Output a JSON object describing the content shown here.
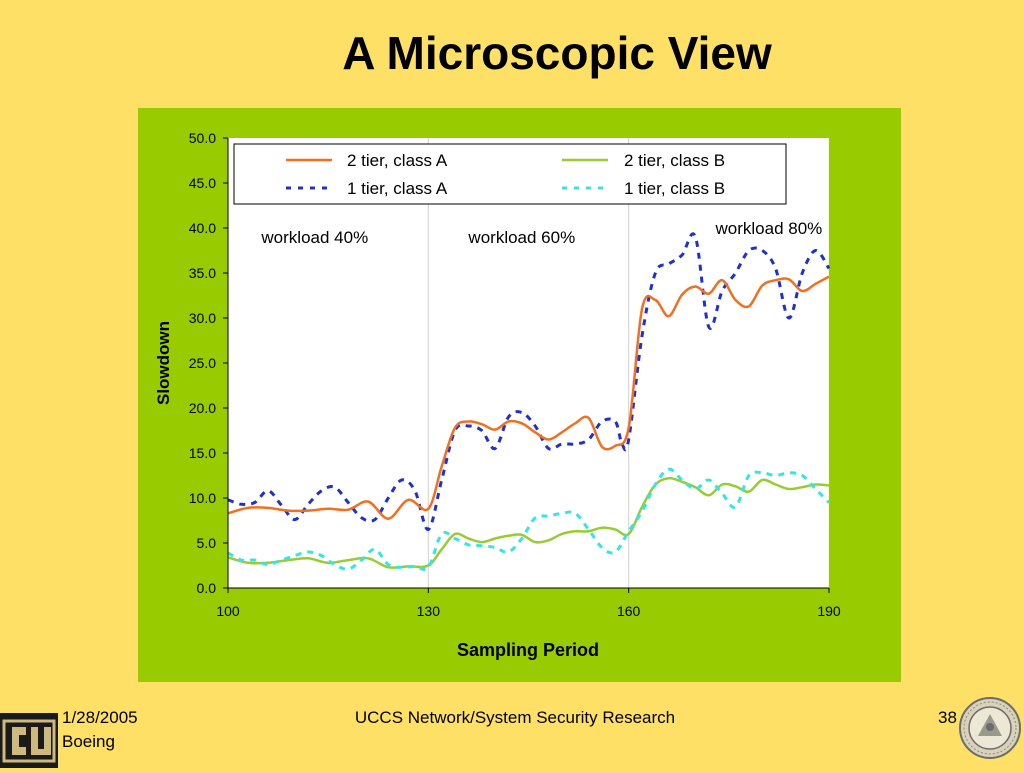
{
  "slide": {
    "title": "A Microscopic View",
    "footer_date": "1/28/2005",
    "footer_org": "Boeing",
    "footer_center": "UCCS Network/System Security Research",
    "page_number": "38"
  },
  "colors": {
    "background": "#FFE066",
    "panel": "#99CC00",
    "series_2tier_A": "#F07020",
    "series_2tier_B": "#99CC33",
    "series_1tier_A": "#1F2FD0",
    "series_1tier_B": "#33E6E6"
  },
  "icons": {
    "left_logo": "cu-logo-icon",
    "right_seal": "university-seal-icon"
  },
  "chart_data": {
    "type": "line",
    "title": "",
    "xlabel": "Sampling Period",
    "ylabel": "Slowdown",
    "xlim": [
      100,
      190
    ],
    "ylim": [
      0,
      50
    ],
    "xticks": [
      "100",
      "130",
      "160",
      "190"
    ],
    "yticks": [
      "0.0",
      "5.0",
      "10.0",
      "15.0",
      "20.0",
      "25.0",
      "30.0",
      "35.0",
      "40.0",
      "45.0",
      "50.0"
    ],
    "grid": false,
    "region_dividers": [
      130,
      160
    ],
    "legend": {
      "placement": "top",
      "columns": 2
    },
    "annotations": [
      {
        "text": "workload 40%",
        "x": 113,
        "y": 39.0
      },
      {
        "text": "workload 60%",
        "x": 144,
        "y": 39.0
      },
      {
        "text": "workload 80%",
        "x": 181,
        "y": 40.0
      }
    ],
    "series": [
      {
        "name": "2 tier, class A",
        "style": "solid",
        "x": [
          100,
          103,
          106,
          109,
          112,
          115,
          118,
          121,
          124,
          127,
          130,
          132,
          134,
          136,
          138,
          140,
          142,
          144,
          146,
          148,
          150,
          152,
          154,
          156,
          158,
          160,
          162,
          164,
          166,
          168,
          170,
          172,
          174,
          176,
          178,
          180,
          182,
          184,
          186,
          188,
          190
        ],
        "values": [
          8.3,
          8.9,
          8.9,
          8.6,
          8.6,
          8.8,
          8.7,
          9.6,
          7.7,
          9.8,
          8.8,
          13.5,
          17.8,
          18.5,
          18.2,
          17.6,
          18.5,
          18.3,
          17.3,
          16.5,
          17.3,
          18.3,
          18.9,
          15.7,
          15.8,
          17.8,
          31.0,
          32.0,
          30.2,
          32.6,
          33.5,
          32.7,
          34.2,
          32.0,
          31.3,
          33.6,
          34.2,
          34.3,
          33.0,
          33.8,
          34.6
        ]
      },
      {
        "name": "2 tier, class B",
        "style": "solid",
        "x": [
          100,
          103,
          106,
          109,
          112,
          115,
          118,
          121,
          124,
          127,
          130,
          132,
          134,
          136,
          138,
          140,
          142,
          144,
          146,
          148,
          150,
          152,
          154,
          156,
          158,
          160,
          162,
          164,
          166,
          168,
          170,
          172,
          174,
          176,
          178,
          180,
          182,
          184,
          186,
          188,
          190
        ],
        "values": [
          3.4,
          2.8,
          2.8,
          3.1,
          3.3,
          2.8,
          3.1,
          3.3,
          2.3,
          2.4,
          2.5,
          4.3,
          6.0,
          5.5,
          5.1,
          5.5,
          5.8,
          5.9,
          5.1,
          5.3,
          6.0,
          6.3,
          6.3,
          6.7,
          6.5,
          6.0,
          9.0,
          11.5,
          12.2,
          11.8,
          11.2,
          10.3,
          11.5,
          11.3,
          10.7,
          12.0,
          11.5,
          11.0,
          11.2,
          11.5,
          11.4
        ]
      },
      {
        "name": "1 tier, class A",
        "style": "dashed",
        "x": [
          100,
          102,
          104,
          106,
          108,
          110,
          112,
          114,
          116,
          118,
          120,
          122,
          124,
          126,
          128,
          130,
          132,
          134,
          136,
          138,
          140,
          142,
          144,
          146,
          148,
          150,
          152,
          154,
          156,
          158,
          159,
          160,
          162,
          164,
          166,
          168,
          170,
          172,
          174,
          176,
          178,
          180,
          182,
          184,
          186,
          188,
          190
        ],
        "values": [
          9.8,
          9.3,
          9.5,
          10.8,
          9.2,
          7.6,
          9.3,
          10.8,
          11.2,
          9.5,
          7.8,
          7.6,
          10.0,
          12.0,
          10.8,
          6.5,
          12.0,
          17.5,
          18.0,
          17.5,
          15.5,
          19.0,
          19.5,
          18.0,
          15.5,
          16.0,
          16.0,
          16.5,
          18.5,
          18.5,
          16.0,
          16.5,
          28.0,
          35.0,
          36.0,
          37.0,
          39.0,
          29.0,
          33.0,
          35.0,
          37.5,
          37.5,
          35.5,
          30.0,
          35.0,
          37.5,
          35.5
        ]
      },
      {
        "name": "1 tier, class B",
        "style": "dashed",
        "x": [
          100,
          102,
          104,
          106,
          108,
          110,
          112,
          114,
          116,
          118,
          120,
          122,
          124,
          126,
          128,
          130,
          132,
          134,
          136,
          138,
          140,
          142,
          144,
          146,
          148,
          150,
          152,
          154,
          156,
          158,
          160,
          162,
          164,
          166,
          168,
          170,
          172,
          174,
          176,
          178,
          180,
          182,
          184,
          186,
          188,
          190
        ],
        "values": [
          3.9,
          3.1,
          3.1,
          2.6,
          3.1,
          3.6,
          4.0,
          3.6,
          2.6,
          2.1,
          3.1,
          4.3,
          2.6,
          2.3,
          2.4,
          2.3,
          6.0,
          5.5,
          4.8,
          4.7,
          4.5,
          4.0,
          5.5,
          7.8,
          8.0,
          8.3,
          8.3,
          6.5,
          4.5,
          4.0,
          6.3,
          8.5,
          11.5,
          13.2,
          12.0,
          11.0,
          12.0,
          10.5,
          9.0,
          12.5,
          12.8,
          12.5,
          12.8,
          12.5,
          11.0,
          9.5
        ]
      }
    ]
  }
}
